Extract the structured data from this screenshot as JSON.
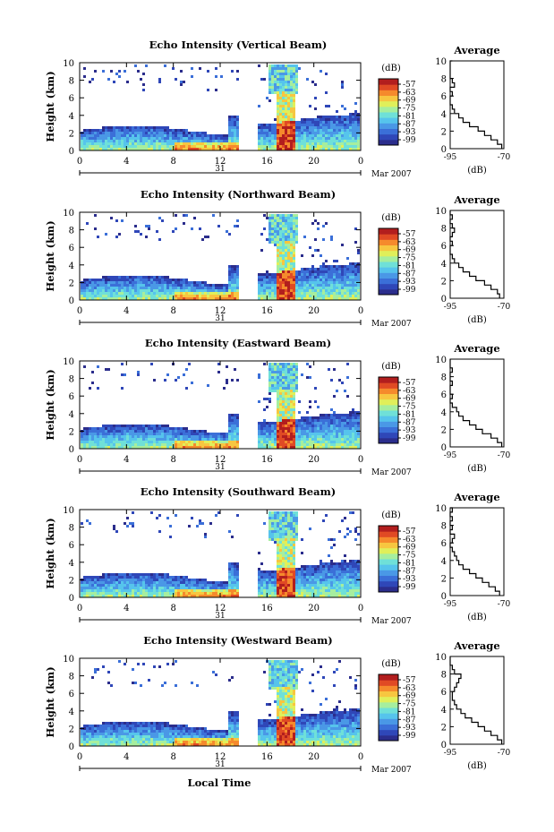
{
  "figure": {
    "xlabel": "Local Time",
    "date_label": "Mar 2007",
    "day_label": "31",
    "colorbar_unit": "(dB)",
    "avg_title": "Average",
    "avg_xlabel": "(dB)",
    "height_label": "Height (km)"
  },
  "colors": {
    "scale": [
      "#2b2d8c",
      "#2f47b8",
      "#3b6fd8",
      "#4a98e6",
      "#56c4ec",
      "#6fe0d8",
      "#a6ee9e",
      "#e0ef5a",
      "#f7c640",
      "#f58a2c",
      "#e04a24",
      "#b21e1e"
    ],
    "line": "#000000"
  },
  "chart_data": [
    {
      "type": "heatmap",
      "title": "Echo Intensity (Vertical Beam)",
      "ylabel": "Height (km)",
      "xticks": [
        "0",
        "4",
        "8",
        "12",
        "16",
        "20",
        "0"
      ],
      "yticks": [
        "0",
        "2",
        "4",
        "6",
        "8",
        "10"
      ],
      "xlim": [
        0,
        24
      ],
      "ylim": [
        0,
        10
      ],
      "colorbar_ticks": [
        "-57",
        "-63",
        "-69",
        "-75",
        "-81",
        "-87",
        "-93",
        "-99"
      ],
      "average": {
        "title": "Average",
        "xticks": [
          "-95",
          "-70"
        ],
        "yticks": [
          "0",
          "2",
          "4",
          "6",
          "8",
          "10"
        ],
        "x": [
          -71,
          -73,
          -76,
          -79,
          -82,
          -86,
          -89,
          -91,
          -93,
          -94,
          -95,
          -95,
          -94,
          -95,
          -93,
          -94,
          -95,
          -95,
          -95,
          -95,
          -94
        ],
        "y": [
          0,
          0.5,
          1,
          1.5,
          2,
          2.5,
          3,
          3.5,
          4,
          4.5,
          5,
          5.5,
          6,
          6.5,
          7,
          7.5,
          8,
          8.5,
          9,
          9.5,
          10
        ]
      }
    },
    {
      "type": "heatmap",
      "title": "Echo Intensity (Northward Beam)",
      "ylabel": "Height (km)",
      "xticks": [
        "0",
        "4",
        "8",
        "12",
        "16",
        "20",
        "0"
      ],
      "yticks": [
        "0",
        "2",
        "4",
        "6",
        "8",
        "10"
      ],
      "xlim": [
        0,
        24
      ],
      "ylim": [
        0,
        10
      ],
      "colorbar_ticks": [
        "-57",
        "-63",
        "-69",
        "-75",
        "-81",
        "-87",
        "-93",
        "-99"
      ],
      "average": {
        "title": "Average",
        "xticks": [
          "-95",
          "-70"
        ],
        "yticks": [
          "0",
          "2",
          "4",
          "6",
          "8",
          "10"
        ],
        "x": [
          -72,
          -73,
          -76,
          -79,
          -83,
          -86,
          -89,
          -91,
          -93,
          -94,
          -95,
          -95,
          -94,
          -95,
          -94,
          -93,
          -94,
          -95,
          -94,
          -95,
          -95
        ],
        "y": [
          0,
          0.5,
          1,
          1.5,
          2,
          2.5,
          3,
          3.5,
          4,
          4.5,
          5,
          5.5,
          6,
          6.5,
          7,
          7.5,
          8,
          8.5,
          9,
          9.5,
          10
        ]
      }
    },
    {
      "type": "heatmap",
      "title": "Echo Intensity (Eastward Beam)",
      "ylabel": "Height (km)",
      "xticks": [
        "0",
        "4",
        "8",
        "12",
        "16",
        "20",
        "0"
      ],
      "yticks": [
        "0",
        "2",
        "4",
        "6",
        "8",
        "10"
      ],
      "xlim": [
        0,
        24
      ],
      "ylim": [
        0,
        10
      ],
      "colorbar_ticks": [
        "-57",
        "-63",
        "-69",
        "-75",
        "-81",
        "-87",
        "-93",
        "-99"
      ],
      "average": {
        "title": "Average",
        "xticks": [
          "-95",
          "-70"
        ],
        "yticks": [
          "0",
          "2",
          "4",
          "6",
          "8",
          "10"
        ],
        "x": [
          -71,
          -73,
          -76,
          -80,
          -83,
          -86,
          -89,
          -91,
          -92,
          -94,
          -95,
          -94,
          -95,
          -95,
          -94,
          -95,
          -95,
          -94,
          -95,
          -95,
          -95
        ],
        "y": [
          0,
          0.5,
          1,
          1.5,
          2,
          2.5,
          3,
          3.5,
          4,
          4.5,
          5,
          5.5,
          6,
          6.5,
          7,
          7.5,
          8,
          8.5,
          9,
          9.5,
          10
        ]
      }
    },
    {
      "type": "heatmap",
      "title": "Echo Intensity (Southward Beam)",
      "ylabel": "Height (km)",
      "xticks": [
        "0",
        "4",
        "8",
        "12",
        "16",
        "20",
        "0"
      ],
      "yticks": [
        "0",
        "2",
        "4",
        "6",
        "8",
        "10"
      ],
      "xlim": [
        0,
        24
      ],
      "ylim": [
        0,
        10
      ],
      "colorbar_ticks": [
        "-57",
        "-63",
        "-69",
        "-75",
        "-81",
        "-87",
        "-93",
        "-99"
      ],
      "average": {
        "title": "Average",
        "xticks": [
          "-95",
          "-70"
        ],
        "yticks": [
          "0",
          "2",
          "4",
          "6",
          "8",
          "10"
        ],
        "x": [
          -72,
          -74,
          -77,
          -80,
          -83,
          -86,
          -89,
          -91,
          -92,
          -93,
          -94,
          -95,
          -94,
          -93,
          -95,
          -94,
          -95,
          -94,
          -95,
          -94,
          -95
        ],
        "y": [
          0,
          0.5,
          1,
          1.5,
          2,
          2.5,
          3,
          3.5,
          4,
          4.5,
          5,
          5.5,
          6,
          6.5,
          7,
          7.5,
          8,
          8.5,
          9,
          9.5,
          10
        ]
      }
    },
    {
      "type": "heatmap",
      "title": "Echo Intensity (Westward Beam)",
      "ylabel": "Height (km)",
      "xticks": [
        "0",
        "4",
        "8",
        "12",
        "16",
        "20",
        "0"
      ],
      "yticks": [
        "0",
        "2",
        "4",
        "6",
        "8",
        "10"
      ],
      "xlim": [
        0,
        24
      ],
      "ylim": [
        0,
        10
      ],
      "colorbar_ticks": [
        "-57",
        "-63",
        "-69",
        "-75",
        "-81",
        "-87",
        "-93",
        "-99"
      ],
      "average": {
        "title": "Average",
        "xticks": [
          "-95",
          "-70"
        ],
        "yticks": [
          "0",
          "2",
          "4",
          "6",
          "8",
          "10"
        ],
        "x": [
          -71,
          -73,
          -76,
          -79,
          -82,
          -85,
          -88,
          -90,
          -92,
          -93,
          -94,
          -94,
          -93,
          -92,
          -91,
          -90,
          -93,
          -94,
          -95,
          -95,
          -95
        ],
        "y": [
          0,
          0.5,
          1,
          1.5,
          2,
          2.5,
          3,
          3.5,
          4,
          4.5,
          5,
          5.5,
          6,
          6.5,
          7,
          7.5,
          8,
          8.5,
          9,
          9.5,
          10
        ]
      }
    }
  ]
}
